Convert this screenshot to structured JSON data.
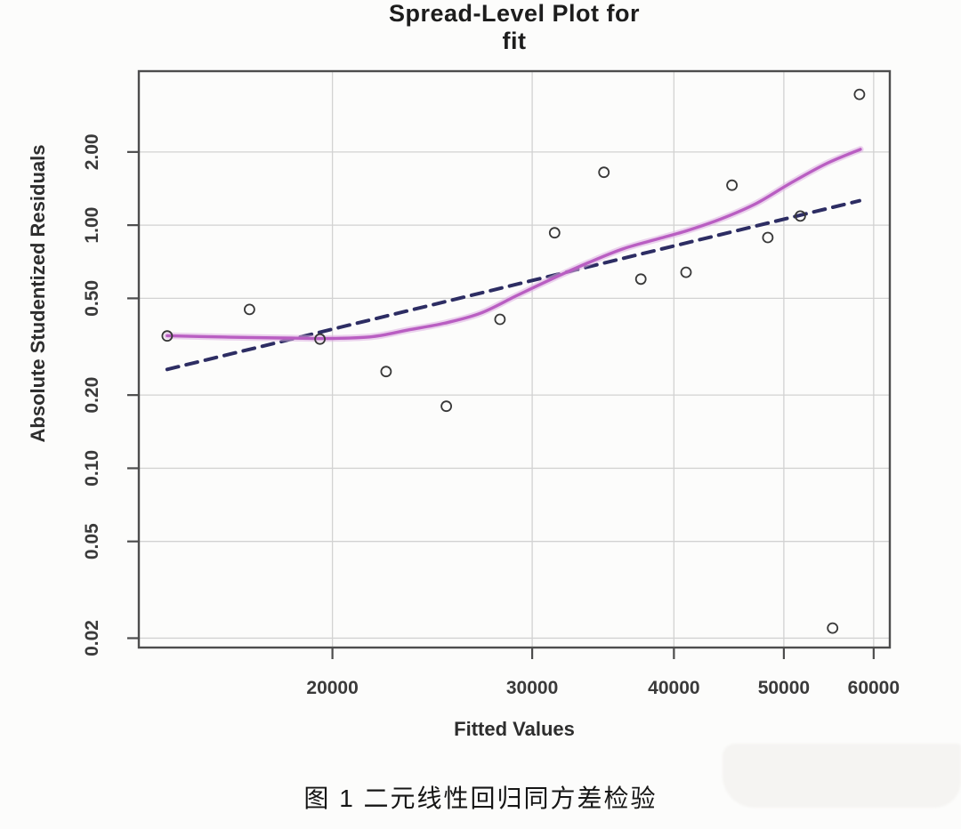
{
  "figure": {
    "title_line1": "Spread-Level Plot for",
    "title_line2": "fit",
    "caption": "图 1 二元线性回归同方差检验"
  },
  "chart_data": {
    "type": "scatter",
    "title": "Spread-Level Plot for fit",
    "xlabel": "Fitted Values",
    "ylabel": "Absolute Studentized Residuals",
    "x_scale": "log",
    "y_scale": "log",
    "xlim": [
      13500,
      62000
    ],
    "ylim": [
      0.0183,
      4.3
    ],
    "grid": true,
    "legend": "none",
    "marker": "open-circle",
    "x_ticks": [
      20000,
      30000,
      40000,
      50000,
      60000
    ],
    "x_tick_labels": [
      "20000",
      "30000",
      "40000",
      "50000",
      "60000"
    ],
    "y_ticks": [
      0.02,
      0.05,
      0.1,
      0.2,
      0.5,
      1.0,
      2.0
    ],
    "y_tick_labels": [
      "0.02",
      "0.05",
      "0.10",
      "0.20",
      "0.50",
      "1.00",
      "2.00"
    ],
    "points": [
      [
        14300,
        0.35
      ],
      [
        16900,
        0.45
      ],
      [
        19500,
        0.34
      ],
      [
        22300,
        0.25
      ],
      [
        25200,
        0.18
      ],
      [
        28100,
        0.41
      ],
      [
        31400,
        0.93
      ],
      [
        34700,
        1.65
      ],
      [
        37400,
        0.6
      ],
      [
        41000,
        0.64
      ],
      [
        45000,
        1.46
      ],
      [
        48400,
        0.89
      ],
      [
        51700,
        1.09
      ],
      [
        55200,
        0.022
      ],
      [
        58300,
        3.45
      ]
    ],
    "series": [
      {
        "name": "linear-fit",
        "style": "dashed",
        "color": "#2d2d63",
        "points": [
          [
            14300,
            0.255
          ],
          [
            58300,
            1.26
          ]
        ]
      },
      {
        "name": "loess-smooth",
        "style": "solid",
        "color": "#b95ec2",
        "points": [
          [
            14300,
            0.351
          ],
          [
            15400,
            0.348
          ],
          [
            16900,
            0.345
          ],
          [
            18400,
            0.343
          ],
          [
            20000,
            0.342
          ],
          [
            21700,
            0.348
          ],
          [
            23300,
            0.37
          ],
          [
            25100,
            0.395
          ],
          [
            27000,
            0.434
          ],
          [
            29000,
            0.51
          ],
          [
            31200,
            0.6
          ],
          [
            33600,
            0.7
          ],
          [
            36100,
            0.8
          ],
          [
            38800,
            0.88
          ],
          [
            41100,
            0.95
          ],
          [
            44000,
            1.06
          ],
          [
            47300,
            1.23
          ],
          [
            50700,
            1.49
          ],
          [
            54500,
            1.79
          ],
          [
            58400,
            2.05
          ]
        ]
      }
    ],
    "colors": {
      "background": "#fcfcfb",
      "plot_border": "#4d4d4d",
      "gridline": "#d2d2d2",
      "tick": "#4d4d4d",
      "point_stroke": "#383838",
      "dashed_line": "#2d2d63",
      "smooth_line": "#b95ec2",
      "smooth_halo": "#dcaee2",
      "text": "#2d2d2d"
    }
  }
}
